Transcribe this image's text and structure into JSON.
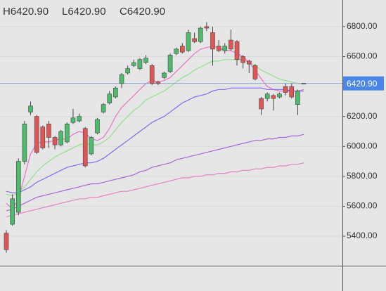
{
  "chart_data": {
    "type": "candlestick",
    "header": [
      "H6420.90",
      "L6420.90",
      "C6420.90"
    ],
    "last_price": {
      "value": 6420.9,
      "label": "6420.90"
    },
    "ylim": [
      5203,
      6978
    ],
    "yticks": [
      {
        "value": 5400,
        "label": "5400.00"
      },
      {
        "value": 5600,
        "label": "5600.00"
      },
      {
        "value": 5800,
        "label": "5800.00"
      },
      {
        "value": 6000,
        "label": "6000.00"
      },
      {
        "value": 6200,
        "label": "6200.00"
      },
      {
        "value": 6400,
        "label": "6400.00"
      },
      {
        "value": 6600,
        "label": "6600.00"
      },
      {
        "value": 6800,
        "label": "6800.00"
      }
    ],
    "up_color": "#4cbb6c",
    "down_color": "#e25555",
    "open": [
      5420,
      5480,
      5560,
      5900,
      6230,
      6200,
      6130,
      6150,
      6060,
      6010,
      6030,
      6160,
      6170,
      6120,
      5950,
      6090,
      6230,
      6290,
      6330,
      6420,
      6490,
      6540,
      6520,
      6560,
      6540,
      6430,
      6460,
      6500,
      6620,
      6670,
      6640,
      6720,
      6700,
      6800,
      6760,
      6670,
      6640,
      6710,
      6700,
      6600,
      6570,
      6540,
      6320,
      6320,
      6340,
      6330,
      6400,
      6400,
      6280,
      6420.9
    ],
    "high": [
      5440,
      5680,
      5920,
      6170,
      6300,
      6210,
      6140,
      6170,
      6070,
      6110,
      6160,
      6250,
      6220,
      6130,
      6070,
      6190,
      6290,
      6370,
      6400,
      6490,
      6540,
      6580,
      6590,
      6610,
      6550,
      6440,
      6500,
      6620,
      6660,
      6690,
      6780,
      6760,
      6800,
      6830,
      6800,
      6710,
      6690,
      6780,
      6710,
      6610,
      6580,
      6550,
      6330,
      6360,
      6350,
      6360,
      6420,
      6420,
      6380,
      6420.9
    ],
    "low": [
      5290,
      5470,
      5540,
      5880,
      6210,
      5950,
      5980,
      5990,
      5980,
      6000,
      6020,
      6150,
      6160,
      5860,
      5940,
      6080,
      6220,
      6280,
      6320,
      6390,
      6480,
      6530,
      6510,
      6550,
      6410,
      6410,
      6450,
      6490,
      6610,
      6620,
      6630,
      6690,
      6690,
      6770,
      6540,
      6630,
      6620,
      6640,
      6540,
      6520,
      6490,
      6440,
      6210,
      6300,
      6240,
      6320,
      6340,
      6320,
      6210,
      6420.9
    ],
    "close": [
      5310,
      5650,
      5900,
      6150,
      6270,
      5960,
      5990,
      6060,
      6010,
      6100,
      6150,
      6190,
      6200,
      5870,
      6060,
      6180,
      6280,
      6350,
      6390,
      6480,
      6520,
      6560,
      6580,
      6590,
      6420,
      6420,
      6490,
      6610,
      6650,
      6630,
      6760,
      6700,
      6790,
      6790,
      6650,
      6640,
      6670,
      6650,
      6580,
      6560,
      6550,
      6450,
      6250,
      6350,
      6320,
      6350,
      6360,
      6330,
      6370,
      6420.9
    ],
    "lines": [
      {
        "color": "#e673c8",
        "values": [
          5620,
          5580,
          5650,
          5800,
          5950,
          6020,
          6030,
          6030,
          6040,
          6050,
          6050,
          6080,
          6100,
          6090,
          6050,
          6040,
          6060,
          6120,
          6200,
          6260,
          6300,
          6340,
          6380,
          6420,
          6440,
          6430,
          6440,
          6460,
          6500,
          6540,
          6580,
          6620,
          6650,
          6660,
          6670,
          6660,
          6640,
          6640,
          6620,
          6600,
          6560,
          6510,
          6450,
          6400,
          6380,
          6370,
          6370,
          6370,
          6370,
          6380
        ]
      },
      {
        "color": "#8fe08f",
        "values": [
          5680,
          5670,
          5690,
          5730,
          5780,
          5830,
          5870,
          5900,
          5930,
          5950,
          5970,
          5990,
          6010,
          6020,
          6010,
          6010,
          6030,
          6060,
          6110,
          6160,
          6200,
          6240,
          6270,
          6310,
          6330,
          6350,
          6370,
          6400,
          6430,
          6460,
          6480,
          6510,
          6530,
          6550,
          6570,
          6570,
          6580,
          6580,
          6580,
          6580,
          6560,
          6540,
          6510,
          6490,
          6470,
          6450,
          6440,
          6430,
          6420,
          6420
        ]
      },
      {
        "color": "#7b6cf0",
        "values": [
          5700,
          5690,
          5690,
          5710,
          5730,
          5760,
          5780,
          5800,
          5820,
          5840,
          5860,
          5870,
          5880,
          5890,
          5890,
          5900,
          5920,
          5950,
          5980,
          6010,
          6040,
          6070,
          6100,
          6130,
          6160,
          6180,
          6200,
          6230,
          6260,
          6290,
          6310,
          6330,
          6340,
          6350,
          6370,
          6380,
          6380,
          6390,
          6390,
          6390,
          6390,
          6390,
          6390,
          6380,
          6380,
          6380,
          6380,
          6370,
          6370,
          6370
        ]
      },
      {
        "color": "#a565d6",
        "values": [
          5570,
          5580,
          5600,
          5620,
          5640,
          5660,
          5670,
          5680,
          5690,
          5700,
          5710,
          5720,
          5730,
          5740,
          5750,
          5750,
          5760,
          5770,
          5780,
          5790,
          5800,
          5810,
          5830,
          5840,
          5860,
          5870,
          5880,
          5890,
          5910,
          5920,
          5930,
          5940,
          5950,
          5960,
          5970,
          5980,
          5990,
          6000,
          6010,
          6020,
          6030,
          6040,
          6040,
          6050,
          6050,
          6060,
          6060,
          6070,
          6070,
          6080
        ]
      },
      {
        "color": "#e680c6",
        "values": [
          5530,
          5540,
          5550,
          5560,
          5570,
          5580,
          5590,
          5600,
          5610,
          5620,
          5630,
          5640,
          5650,
          5650,
          5660,
          5660,
          5670,
          5680,
          5690,
          5700,
          5700,
          5710,
          5720,
          5730,
          5740,
          5750,
          5760,
          5770,
          5780,
          5790,
          5790,
          5800,
          5800,
          5810,
          5810,
          5820,
          5820,
          5830,
          5830,
          5840,
          5840,
          5850,
          5850,
          5860,
          5860,
          5870,
          5870,
          5880,
          5880,
          5890
        ]
      }
    ]
  }
}
